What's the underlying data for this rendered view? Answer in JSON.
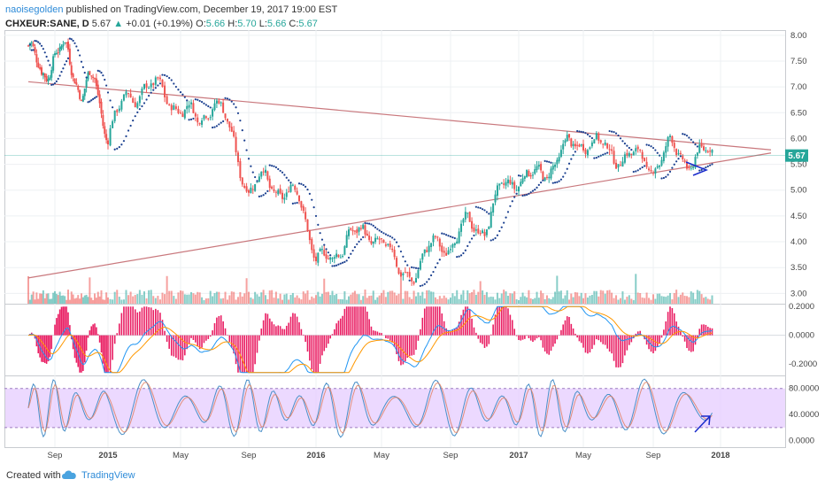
{
  "header": {
    "user": "naoisegolden",
    "published": "published on TradingView.com, December 19, 2017 19:00 EST",
    "symbol": "CHXEUR:SANE, D",
    "price": "5.67",
    "change": "+0.01 (+0.19%)",
    "open_label": "O:",
    "open": "5.66",
    "high_label": "H:",
    "high": "5.70",
    "low_label": "L:",
    "low": "5.66",
    "close_label": "C:",
    "close": "5.67",
    "up_icon": "triangle-up-icon"
  },
  "footer": {
    "created_with": "Created with",
    "brand": "TradingView",
    "logo_icon": "tradingview-cloud-icon"
  },
  "colors": {
    "up": "#26a69a",
    "down": "#ef5350",
    "psar": "#1a3f8f",
    "trendline": "#c9787d",
    "macd_hist": "#e91e63",
    "macd_line": "#2196f3",
    "signal_line": "#ff9800",
    "stoch_band": "#e6ccff",
    "arrow": "#1a2bcc",
    "price_badge": "#26a69a"
  },
  "chart_data": [
    {
      "type": "candlestick",
      "panel": "price",
      "y_ticks": [
        "8.00",
        "7.50",
        "7.00",
        "6.50",
        "6.00",
        "5.50",
        "5.00",
        "4.50",
        "4.00",
        "3.50",
        "3.00"
      ],
      "ylim": [
        2.8,
        8.1
      ],
      "last_price": "5.67",
      "x_ticks": [
        "Sep",
        "2015",
        "May",
        "Sep",
        "2016",
        "May",
        "Sep",
        "2017",
        "May",
        "Sep",
        "2018"
      ],
      "x_ticks_bold": [
        "2015",
        "2016",
        "2017",
        "2018"
      ],
      "x_dates": [
        "2014-09",
        "2015-01",
        "2015-05",
        "2015-09",
        "2016-01",
        "2016-05",
        "2016-09",
        "2017-01",
        "2017-05",
        "2017-09",
        "2018-01"
      ],
      "close_path": [
        {
          "x": "2014-07",
          "y": 7.8
        },
        {
          "x": "2014-08",
          "y": 7.2
        },
        {
          "x": "2014-09",
          "y": 7.6
        },
        {
          "x": "2014-10",
          "y": 7.7
        },
        {
          "x": "2014-11",
          "y": 6.8
        },
        {
          "x": "2014-12",
          "y": 7.2
        },
        {
          "x": "2015-01",
          "y": 6.0
        },
        {
          "x": "2015-02",
          "y": 6.8
        },
        {
          "x": "2015-03",
          "y": 7.0
        },
        {
          "x": "2015-04",
          "y": 6.9
        },
        {
          "x": "2015-05",
          "y": 6.6
        },
        {
          "x": "2015-06",
          "y": 6.3
        },
        {
          "x": "2015-07",
          "y": 6.8
        },
        {
          "x": "2015-08",
          "y": 6.0
        },
        {
          "x": "2015-09",
          "y": 5.0
        },
        {
          "x": "2015-10",
          "y": 5.2
        },
        {
          "x": "2015-11",
          "y": 5.0
        },
        {
          "x": "2015-12",
          "y": 4.8
        },
        {
          "x": "2016-01",
          "y": 3.8
        },
        {
          "x": "2016-02",
          "y": 3.5
        },
        {
          "x": "2016-03",
          "y": 4.3
        },
        {
          "x": "2016-04",
          "y": 4.0
        },
        {
          "x": "2016-05",
          "y": 4.2
        },
        {
          "x": "2016-06",
          "y": 3.3
        },
        {
          "x": "2016-07",
          "y": 3.5
        },
        {
          "x": "2016-08",
          "y": 3.9
        },
        {
          "x": "2016-09",
          "y": 4.0
        },
        {
          "x": "2016-10",
          "y": 4.3
        },
        {
          "x": "2016-11",
          "y": 4.3
        },
        {
          "x": "2016-12",
          "y": 5.0
        },
        {
          "x": "2017-01",
          "y": 5.3
        },
        {
          "x": "2017-02",
          "y": 5.2
        },
        {
          "x": "2017-03",
          "y": 5.5
        },
        {
          "x": "2017-04",
          "y": 5.8
        },
        {
          "x": "2017-05",
          "y": 6.0
        },
        {
          "x": "2017-06",
          "y": 5.8
        },
        {
          "x": "2017-07",
          "y": 5.7
        },
        {
          "x": "2017-08",
          "y": 5.6
        },
        {
          "x": "2017-09",
          "y": 5.5
        },
        {
          "x": "2017-10",
          "y": 5.8
        },
        {
          "x": "2017-11",
          "y": 5.6
        },
        {
          "x": "2017-12",
          "y": 5.67
        }
      ],
      "trendlines": [
        {
          "x1": "2014-07",
          "y1": 7.1,
          "x2": "2018-04",
          "y2": 5.78
        },
        {
          "x1": "2014-07",
          "y1": 3.3,
          "x2": "2018-04",
          "y2": 5.72
        }
      ]
    },
    {
      "type": "line",
      "panel": "macd",
      "y_ticks": [
        "0.2000",
        "0.0000",
        "-0.2000"
      ],
      "ylim": [
        -0.28,
        0.22
      ],
      "series_count": 3
    },
    {
      "type": "line",
      "panel": "stochastic",
      "y_ticks": [
        "80.0000",
        "40.0000",
        "0.0000"
      ],
      "ylim": [
        -10,
        100
      ],
      "band": [
        20,
        80
      ]
    }
  ]
}
